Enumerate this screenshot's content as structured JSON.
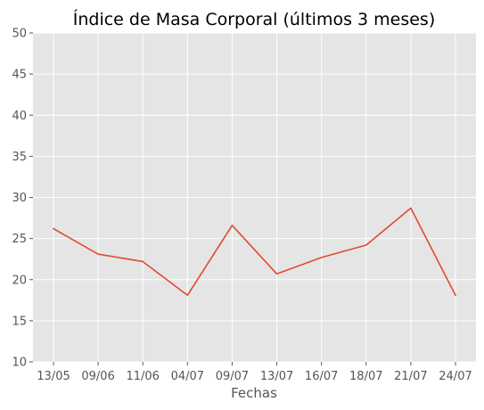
{
  "chart_data": {
    "type": "line",
    "title": "Índice de Masa Corporal (últimos 3 meses)",
    "xlabel": "Fechas",
    "ylabel": "",
    "categories": [
      "13/05",
      "09/06",
      "11/06",
      "04/07",
      "09/07",
      "13/07",
      "16/07",
      "18/07",
      "21/07",
      "24/07"
    ],
    "series": [
      {
        "values": [
          26.2,
          23.1,
          22.2,
          18.1,
          26.6,
          20.7,
          22.7,
          24.2,
          28.7,
          18.1
        ],
        "color": "#e24a33"
      }
    ],
    "ylim": [
      10,
      50
    ],
    "yticks": [
      10,
      15,
      20,
      25,
      30,
      35,
      40,
      45,
      50
    ],
    "grid": true,
    "plot_background": "#e5e5e5",
    "grid_color": "#ffffff"
  }
}
